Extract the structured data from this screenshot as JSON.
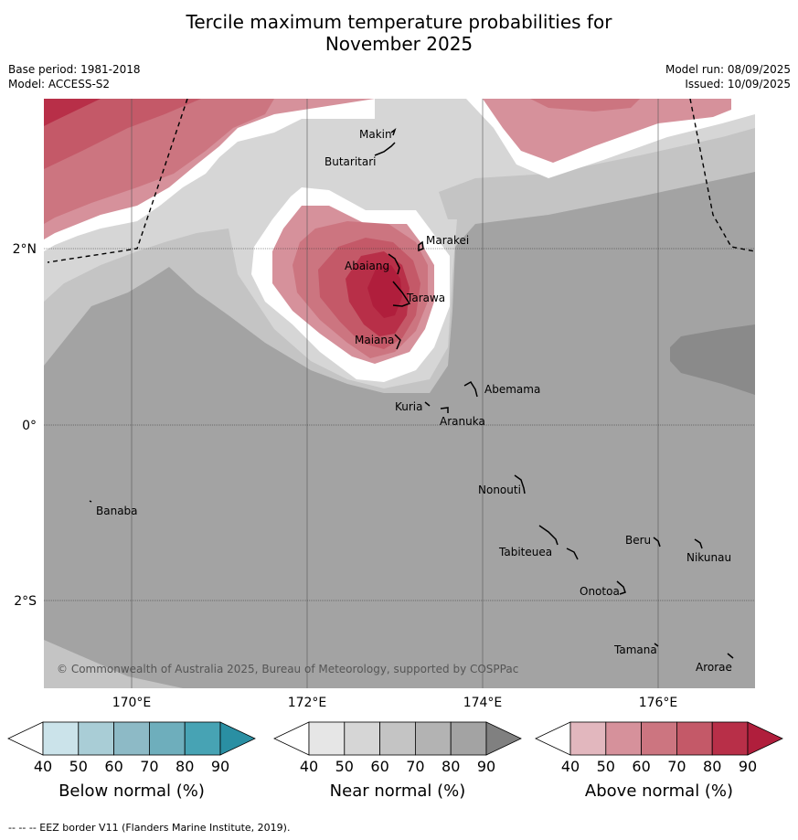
{
  "title_line1": "Tercile maximum temperature probabilities for",
  "title_line2": "November 2025",
  "base_period": "Base period: 1981-2018",
  "model": "Model: ACCESS-S2",
  "model_run": "Model run: 08/09/2025",
  "issued": "Issued: 10/09/2025",
  "copyright": "© Commonwealth of Australia 2025, Bureau of Meteorology, supported by COSPPac",
  "footnote": "--  --  -- EEZ border V11 (Flanders Marine Institute, 2019).",
  "lat_labels": [
    "2°N",
    "0°",
    "2°S"
  ],
  "lon_labels": [
    "170°E",
    "172°E",
    "174°E",
    "176°E"
  ],
  "islands": [
    "Makin",
    "Butaritari",
    "Marakei",
    "Abaiang",
    "Tarawa",
    "Maiana",
    "Abemama",
    "Kuria",
    "Aranuka",
    "Banaba",
    "Nonouti",
    "Beru",
    "Tabiteuea",
    "Nikunau",
    "Onotoa",
    "Tamana",
    "Arorae"
  ],
  "colorbars": [
    {
      "title": "Below normal (%)",
      "ticks": [
        "40",
        "50",
        "60",
        "70",
        "80",
        "90"
      ],
      "colors": [
        "#ffffff",
        "#cbe3ea",
        "#a9cdd6",
        "#8dbac6",
        "#6eaebc",
        "#47a3b4",
        "#2a8fa3"
      ]
    },
    {
      "title": "Near normal (%)",
      "ticks": [
        "40",
        "50",
        "60",
        "70",
        "80",
        "90"
      ],
      "colors": [
        "#ffffff",
        "#e6e6e6",
        "#d6d6d6",
        "#c4c4c4",
        "#b3b3b3",
        "#a3a3a3",
        "#808080"
      ]
    },
    {
      "title": "Above normal (%)",
      "ticks": [
        "40",
        "50",
        "60",
        "70",
        "80",
        "90"
      ],
      "colors": [
        "#ffffff",
        "#e2b7be",
        "#d6919b",
        "#cc7580",
        "#c45968",
        "#b82f48",
        "#b01e3c"
      ]
    }
  ]
}
